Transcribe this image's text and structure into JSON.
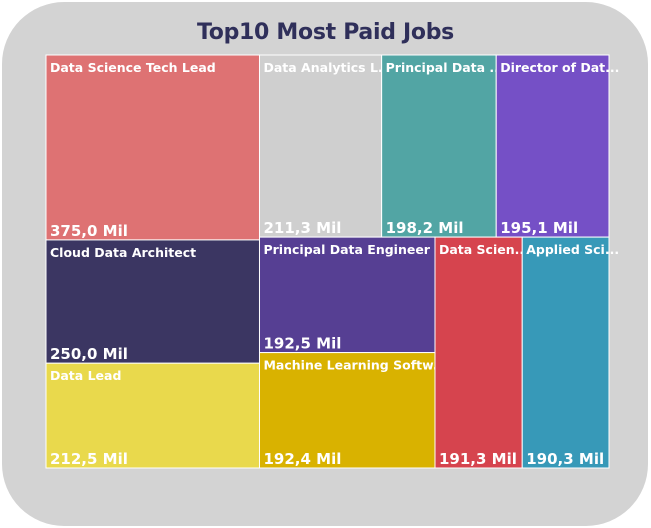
{
  "title": "Top10 Most Paid Jobs",
  "chart_data": {
    "type": "treemap",
    "title": "Top10 Most Paid Jobs",
    "items": [
      {
        "name": "Data Science Tech Lead",
        "label": "Data Science Tech Lead",
        "value": 375.0,
        "value_label": "375,0 Mil",
        "color": "#de7273"
      },
      {
        "name": "Cloud Data Architect",
        "label": "Cloud Data Architect",
        "value": 250.0,
        "value_label": "250,0 Mil",
        "color": "#3b3662"
      },
      {
        "name": "Data Lead",
        "label": "Data Lead",
        "value": 212.5,
        "value_label": "212,5 Mil",
        "color": "#e9d94c"
      },
      {
        "name": "Data Analytics L...",
        "label": "Data Analytics L...",
        "value": 211.3,
        "value_label": "211,3 Mil",
        "color": "#cfcfcf"
      },
      {
        "name": "Principal Data ...",
        "label": "Principal Data ...",
        "value": 198.2,
        "value_label": "198,2 Mil",
        "color": "#52a5a4"
      },
      {
        "name": "Director of Dat...",
        "label": "Director of Dat...",
        "value": 195.1,
        "value_label": "195,1 Mil",
        "color": "#7550c6"
      },
      {
        "name": "Principal Data Engineer",
        "label": "Principal Data Engineer",
        "value": 192.5,
        "value_label": "192,5 Mil",
        "color": "#563f93"
      },
      {
        "name": "Machine Learning Softw...",
        "label": "Machine Learning Softw...",
        "value": 192.4,
        "value_label": "192,4 Mil",
        "color": "#d9b200"
      },
      {
        "name": "Data Scien...",
        "label": "Data Scien...",
        "value": 191.3,
        "value_label": "191,3 Mil",
        "color": "#d6444e"
      },
      {
        "name": "Applied Sci...",
        "label": "Applied Sci...",
        "value": 190.3,
        "value_label": "190,3 Mil",
        "color": "#3799b8"
      }
    ]
  }
}
